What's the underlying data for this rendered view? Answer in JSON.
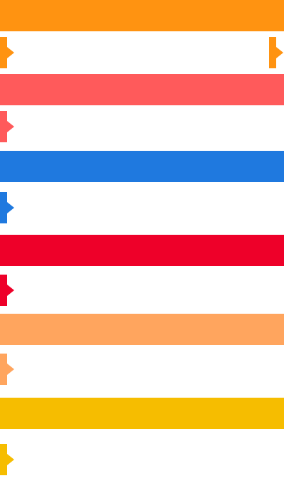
{
  "bands": [
    {
      "color": "#FF9311"
    },
    {
      "color": "#FF5A5B"
    },
    {
      "color": "#1F79DF"
    },
    {
      "color": "#EE0029"
    },
    {
      "color": "#FFA55E"
    },
    {
      "color": "#F6BD00"
    }
  ]
}
